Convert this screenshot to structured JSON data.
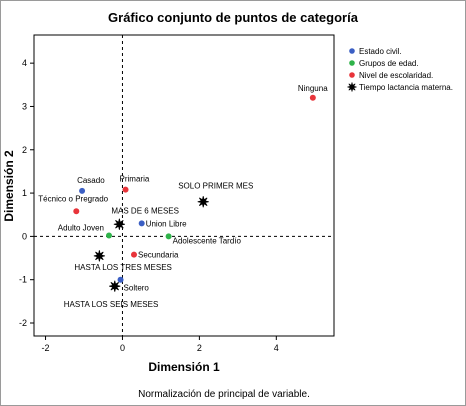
{
  "chart_data": {
    "type": "scatter",
    "title": "Gráfico conjunto de puntos de categoría",
    "xlabel": "Dimensión 1",
    "ylabel": "Dimensión 2",
    "xlim": [
      -2.3,
      5.5
    ],
    "ylim": [
      -2.3,
      4.65
    ],
    "xticks": [
      -2,
      0,
      2,
      4
    ],
    "yticks": [
      -2,
      -1,
      0,
      1,
      2,
      3,
      4
    ],
    "grid": false,
    "reference_lines": {
      "x": 0,
      "y": 0
    },
    "legend_position": "top-right",
    "footnote": "Normalización de principal de variable.",
    "series": [
      {
        "name": "Estado civil.",
        "color": "#3b5fc4",
        "marker": "circle",
        "points": [
          {
            "label": "Casado",
            "x": -1.05,
            "y": 1.05
          },
          {
            "label": "Union Libre",
            "x": 0.5,
            "y": 0.3
          },
          {
            "label": "Soltero",
            "x": -0.05,
            "y": -1.0
          }
        ]
      },
      {
        "name": "Grupos de edad.",
        "color": "#2fb34a",
        "marker": "circle",
        "points": [
          {
            "label": "Adulto Joven",
            "x": -0.35,
            "y": 0.02
          },
          {
            "label": "Adolescente Tardío",
            "x": 1.2,
            "y": 0.0
          }
        ]
      },
      {
        "name": "Nivel de escolaridad.",
        "color": "#e8343a",
        "marker": "circle",
        "points": [
          {
            "label": "Primaria",
            "x": 0.08,
            "y": 1.08
          },
          {
            "label": "Técnico o Pregrado",
            "x": -1.2,
            "y": 0.58
          },
          {
            "label": "Secundaria",
            "x": 0.3,
            "y": -0.42
          },
          {
            "label": "Ninguna",
            "x": 4.95,
            "y": 3.2
          }
        ]
      },
      {
        "name": "Tiempo lactancia materna.",
        "color": "#000000",
        "marker": "star",
        "points": [
          {
            "label": "SOLO PRIMER MES",
            "x": 2.1,
            "y": 0.8
          },
          {
            "label": "MAS DE 6 MESES",
            "x": -0.08,
            "y": 0.28
          },
          {
            "label": "HASTA LOS TRES MESES",
            "x": -0.6,
            "y": -0.45
          },
          {
            "label": "HASTA LOS SEIS MESES",
            "x": -0.2,
            "y": -1.15
          }
        ]
      }
    ]
  }
}
